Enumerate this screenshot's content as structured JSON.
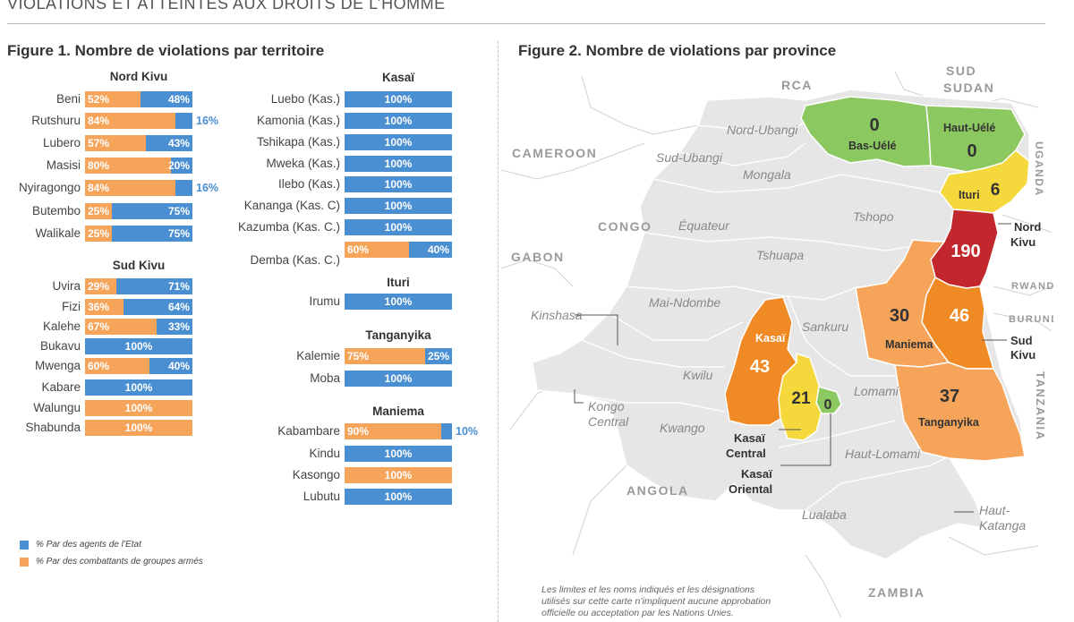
{
  "header": "VIOLATIONS ET ATTEINTES AUX DROITS DE L’HOMME",
  "figure1": {
    "title": "Figure 1. Nombre de violations par territoire",
    "groups": [
      {
        "name": "Nord Kivu",
        "rows": [
          {
            "label": "Beni",
            "orange": 52,
            "blue": 48,
            "orange_text": "52%",
            "blue_text": "48%"
          },
          {
            "label": "Rutshuru",
            "orange": 84,
            "blue": 16,
            "orange_text": "84%",
            "blue_text": "16%"
          },
          {
            "label": "Lubero",
            "orange": 57,
            "blue": 43,
            "orange_text": "57%",
            "blue_text": "43%"
          },
          {
            "label": "Masisi",
            "orange": 80,
            "blue": 20,
            "orange_text": "80%",
            "blue_text": "20%"
          },
          {
            "label": "Nyiragongo",
            "orange": 84,
            "blue": 16,
            "orange_text": "84%",
            "blue_text": "16%"
          },
          {
            "label": "Butembo",
            "orange": 25,
            "blue": 75,
            "orange_text": "25%",
            "blue_text": "75%"
          },
          {
            "label": "Walikale",
            "orange": 25,
            "blue": 75,
            "orange_text": "25%",
            "blue_text": "75%"
          }
        ]
      },
      {
        "name": "Sud Kivu",
        "rows": [
          {
            "label": "Uvira",
            "orange": 29,
            "blue": 71,
            "orange_text": "29%",
            "blue_text": "71%"
          },
          {
            "label": "Fizi",
            "orange": 36,
            "blue": 64,
            "orange_text": "36%",
            "blue_text": "64%"
          },
          {
            "label": "Kalehe",
            "orange": 67,
            "blue": 33,
            "orange_text": "67%",
            "blue_text": "33%"
          },
          {
            "label": "Bukavu",
            "orange": 0,
            "blue": 100,
            "orange_text": "",
            "blue_text": "100%"
          },
          {
            "label": "Mwenga",
            "orange": 60,
            "blue": 40,
            "orange_text": "60%",
            "blue_text": "40%"
          },
          {
            "label": "Kabare",
            "orange": 0,
            "blue": 100,
            "orange_text": "",
            "blue_text": "100%"
          },
          {
            "label": "Walungu",
            "orange": 100,
            "blue": 0,
            "orange_text": "100%",
            "blue_text": ""
          },
          {
            "label": "Shabunda",
            "orange": 100,
            "blue": 0,
            "orange_text": "100%",
            "blue_text": ""
          }
        ]
      },
      {
        "name": "Kasaï",
        "rows": [
          {
            "label": "Luebo (Kas.)",
            "orange": 0,
            "blue": 100,
            "orange_text": "",
            "blue_text": "100%"
          },
          {
            "label": "Kamonia (Kas.)",
            "orange": 0,
            "blue": 100,
            "orange_text": "",
            "blue_text": "100%"
          },
          {
            "label": "Tshikapa (Kas.)",
            "orange": 0,
            "blue": 100,
            "orange_text": "",
            "blue_text": "100%"
          },
          {
            "label": "Mweka (Kas.)",
            "orange": 0,
            "blue": 100,
            "orange_text": "",
            "blue_text": "100%"
          },
          {
            "label": "Ilebo (Kas.)",
            "orange": 0,
            "blue": 100,
            "orange_text": "",
            "blue_text": "100%"
          },
          {
            "label": "Kananga (Kas. C)",
            "orange": 0,
            "blue": 100,
            "orange_text": "",
            "blue_text": "100%"
          },
          {
            "label": "Kazumba (Kas. C.)",
            "orange": 0,
            "blue": 100,
            "orange_text": "",
            "blue_text": "100%"
          },
          {
            "label": "Demba (Kas. C.)",
            "orange": 60,
            "blue": 40,
            "orange_text": "60%",
            "blue_text": "40%"
          }
        ]
      },
      {
        "name": "Ituri",
        "rows": [
          {
            "label": "Irumu",
            "orange": 0,
            "blue": 100,
            "orange_text": "",
            "blue_text": "100%"
          }
        ]
      },
      {
        "name": "Tanganyika",
        "rows": [
          {
            "label": "Kalemie",
            "orange": 75,
            "blue": 25,
            "orange_text": "75%",
            "blue_text": "25%"
          },
          {
            "label": "Moba",
            "orange": 0,
            "blue": 100,
            "orange_text": "",
            "blue_text": "100%"
          }
        ]
      },
      {
        "name": "Maniema",
        "rows": [
          {
            "label": "Kabambare",
            "orange": 90,
            "blue": 10,
            "orange_text": "90%",
            "blue_text": "10%"
          },
          {
            "label": "Kindu",
            "orange": 0,
            "blue": 100,
            "orange_text": "",
            "blue_text": "100%"
          },
          {
            "label": "Kasongo",
            "orange": 100,
            "blue": 0,
            "orange_text": "100%",
            "blue_text": ""
          },
          {
            "label": "Lubutu",
            "orange": 0,
            "blue": 100,
            "orange_text": "",
            "blue_text": "100%"
          }
        ]
      }
    ],
    "legend": [
      {
        "color": "#4a8fd1",
        "label": "% Par des agents de l’Etat"
      },
      {
        "color": "#f5a45a",
        "label": "% Par des combattants de groupes armés"
      }
    ]
  },
  "figure2": {
    "title": "Figure 2. Nombre de violations par province",
    "countries": [
      "RCA",
      "SUD",
      "SUDAN",
      "CAMEROON",
      "CONGO",
      "GABON",
      "ANGOLA",
      "ZAMBIA",
      "RWANDA",
      "BURUNDI",
      "UGANDA",
      "TANZANIA"
    ],
    "unshaded_provinces": [
      "Nord-Ubangi",
      "Sud-Ubangi",
      "Mongala",
      "Équateur",
      "Tshopo",
      "Tshuapa",
      "Mai-Ndombe",
      "Kinshasa",
      "Sankuru",
      "Kwilu",
      "Lomami",
      "Kongo",
      "Central",
      "Kwango",
      "Haut-Lomami",
      "Lualaba",
      "Haut-",
      "Katanga"
    ],
    "provinces": [
      {
        "name": "Bas-Uélé",
        "value": "0",
        "color": "#8cc860"
      },
      {
        "name": "Haut-Uélé",
        "value": "0",
        "color": "#8cc860"
      },
      {
        "name": "Ituri",
        "value": "6",
        "color": "#f5d83c"
      },
      {
        "name": "Nord Kivu",
        "value": "190",
        "color": "#c1272d"
      },
      {
        "name": "Maniema",
        "value": "30",
        "color": "#f5a45a"
      },
      {
        "name": "Sud Kivu",
        "value": "46",
        "color": "#f08a24"
      },
      {
        "name": "Tanganyika",
        "value": "37",
        "color": "#f5a45a"
      },
      {
        "name": "Kasaï",
        "value": "43",
        "color": "#f08a24"
      },
      {
        "name": "Kasaï Central",
        "value": "21",
        "color": "#f5d83c"
      },
      {
        "name": "Kasaï Oriental",
        "value": "0",
        "color": "#8cc860"
      }
    ],
    "callouts": {
      "nord_kivu": [
        "Nord",
        "Kivu"
      ],
      "sud_kivu": [
        "Sud",
        "Kivu"
      ],
      "kasai_central": [
        "Kasaï",
        "Central"
      ],
      "kasai_oriental": [
        "Kasaï",
        "Oriental"
      ]
    },
    "disclaimer": [
      "Les limites et les noms indiqués et les désignations",
      "utilisés sur cette carte n’impliquent aucune approbation",
      "officielle ou acceptation par les Nations Unies."
    ]
  }
}
